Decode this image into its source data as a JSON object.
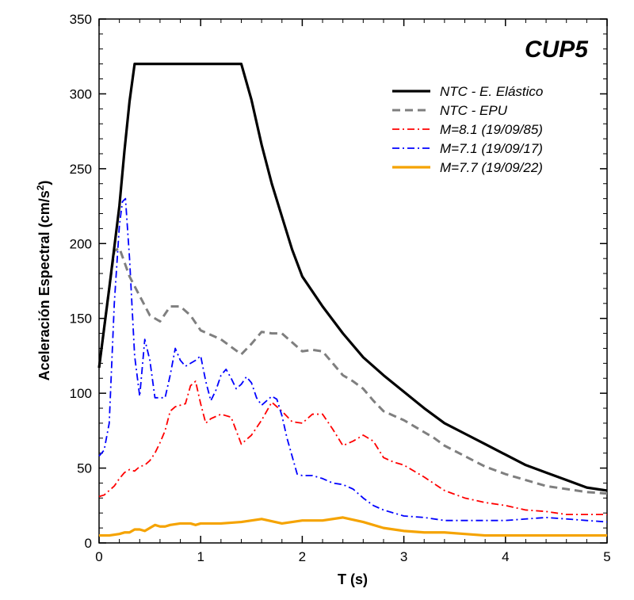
{
  "chart_data": {
    "type": "line",
    "title": "CUP5",
    "xlabel": "T (s)",
    "ylabel_main": "Aceleración Espectral (cm/s",
    "ylabel_sup": "2",
    "ylabel_end": ")",
    "xlim": [
      0,
      5
    ],
    "ylim": [
      0,
      350
    ],
    "xticks": [
      0,
      1,
      2,
      3,
      4,
      5
    ],
    "yticks": [
      0,
      50,
      100,
      150,
      200,
      250,
      300,
      350
    ],
    "legend_position": "top-right",
    "series": [
      {
        "name": "NTC - E. Elástico",
        "color": "#000000",
        "style": "solid",
        "x": [
          0,
          0.1,
          0.2,
          0.25,
          0.3,
          0.35,
          1.4,
          1.5,
          1.6,
          1.7,
          1.8,
          1.9,
          2.0,
          2.2,
          2.4,
          2.6,
          2.8,
          3.0,
          3.2,
          3.4,
          3.6,
          3.8,
          4.0,
          4.2,
          4.4,
          4.6,
          4.8,
          5.0
        ],
        "y": [
          117,
          170,
          225,
          262,
          295,
          320,
          320,
          296,
          266,
          240,
          218,
          196,
          178,
          158,
          140,
          124,
          112,
          101,
          90,
          80,
          73,
          66,
          59,
          52,
          47,
          42,
          37,
          35
        ]
      },
      {
        "name": "NTC - EPU",
        "color": "#7f7f7f",
        "style": "dashed",
        "x": [
          0,
          0.08,
          0.15,
          0.2,
          0.3,
          0.4,
          0.5,
          0.6,
          0.7,
          0.8,
          0.9,
          1.0,
          1.1,
          1.2,
          1.3,
          1.4,
          1.5,
          1.6,
          1.7,
          1.8,
          1.9,
          2.0,
          2.1,
          2.2,
          2.3,
          2.4,
          2.5,
          2.6,
          2.7,
          2.8,
          2.9,
          3.0,
          3.1,
          3.2,
          3.3,
          3.4,
          3.6,
          3.8,
          4.0,
          4.2,
          4.4,
          4.6,
          4.8,
          5.0
        ],
        "y": [
          117,
          160,
          195,
          197,
          178,
          165,
          152,
          148,
          158,
          158,
          152,
          142,
          139,
          136,
          131,
          126,
          133,
          141,
          140,
          140,
          134,
          128,
          129,
          128,
          120,
          112,
          108,
          103,
          95,
          88,
          85,
          82,
          78,
          74,
          70,
          65,
          58,
          51,
          46,
          42,
          38,
          36,
          34,
          33
        ]
      },
      {
        "name": "M=8.1 (19/09/85)",
        "color": "#ff0000",
        "style": "dashdot",
        "x": [
          0,
          0.05,
          0.1,
          0.15,
          0.2,
          0.25,
          0.3,
          0.35,
          0.4,
          0.45,
          0.5,
          0.55,
          0.6,
          0.65,
          0.7,
          0.75,
          0.8,
          0.85,
          0.9,
          0.95,
          1.0,
          1.05,
          1.1,
          1.2,
          1.3,
          1.4,
          1.5,
          1.6,
          1.7,
          1.8,
          1.9,
          2.0,
          2.1,
          2.2,
          2.3,
          2.4,
          2.5,
          2.6,
          2.7,
          2.8,
          2.9,
          3.0,
          3.2,
          3.4,
          3.6,
          3.8,
          4.0,
          4.2,
          4.4,
          4.6,
          4.8,
          5.0
        ],
        "y": [
          31,
          32,
          35,
          38,
          43,
          47,
          49,
          48,
          51,
          52,
          55,
          60,
          67,
          75,
          88,
          91,
          92,
          93,
          105,
          108,
          93,
          80,
          83,
          86,
          84,
          66,
          72,
          82,
          94,
          88,
          81,
          80,
          86,
          86,
          76,
          65,
          68,
          72,
          68,
          57,
          54,
          52,
          44,
          35,
          30,
          27,
          25,
          22,
          21,
          19,
          19,
          19
        ]
      },
      {
        "name": "M=7.1 (19/09/17)",
        "color": "#0000ff",
        "style": "dashdot",
        "x": [
          0,
          0.05,
          0.1,
          0.15,
          0.2,
          0.23,
          0.26,
          0.3,
          0.35,
          0.4,
          0.45,
          0.5,
          0.55,
          0.6,
          0.65,
          0.7,
          0.75,
          0.8,
          0.85,
          0.9,
          0.95,
          1.0,
          1.05,
          1.1,
          1.15,
          1.2,
          1.25,
          1.3,
          1.35,
          1.4,
          1.45,
          1.5,
          1.55,
          1.6,
          1.7,
          1.75,
          1.8,
          1.85,
          1.9,
          1.95,
          2.0,
          2.1,
          2.2,
          2.3,
          2.4,
          2.5,
          2.6,
          2.7,
          2.8,
          3.0,
          3.2,
          3.4,
          3.6,
          3.8,
          4.0,
          4.2,
          4.4,
          4.6,
          4.8,
          5.0
        ],
        "y": [
          58,
          62,
          80,
          160,
          212,
          228,
          230,
          190,
          125,
          98,
          136,
          122,
          97,
          97,
          97,
          112,
          130,
          122,
          118,
          120,
          122,
          125,
          108,
          95,
          102,
          112,
          116,
          110,
          103,
          106,
          111,
          107,
          97,
          92,
          98,
          96,
          85,
          70,
          58,
          46,
          45,
          45,
          43,
          40,
          39,
          36,
          30,
          25,
          22,
          18,
          17,
          15,
          15,
          15,
          15,
          16,
          17,
          16,
          15,
          14
        ]
      },
      {
        "name": "M=7.7 (19/09/22)",
        "color": "#f5a300",
        "style": "solid",
        "x": [
          0,
          0.1,
          0.2,
          0.25,
          0.3,
          0.35,
          0.4,
          0.45,
          0.5,
          0.55,
          0.6,
          0.65,
          0.7,
          0.8,
          0.9,
          0.95,
          1.0,
          1.1,
          1.2,
          1.4,
          1.6,
          1.8,
          2.0,
          2.2,
          2.4,
          2.6,
          2.8,
          3.0,
          3.2,
          3.4,
          3.6,
          3.8,
          4.0,
          4.2,
          4.4,
          4.6,
          4.8,
          5.0
        ],
        "y": [
          5,
          5,
          6,
          7,
          7,
          9,
          9,
          8,
          10,
          12,
          11,
          11,
          12,
          13,
          13,
          12,
          13,
          13,
          13,
          14,
          16,
          13,
          15,
          15,
          17,
          14,
          10,
          8,
          7,
          7,
          6,
          5,
          5,
          5,
          5,
          5,
          5,
          5
        ]
      }
    ]
  }
}
